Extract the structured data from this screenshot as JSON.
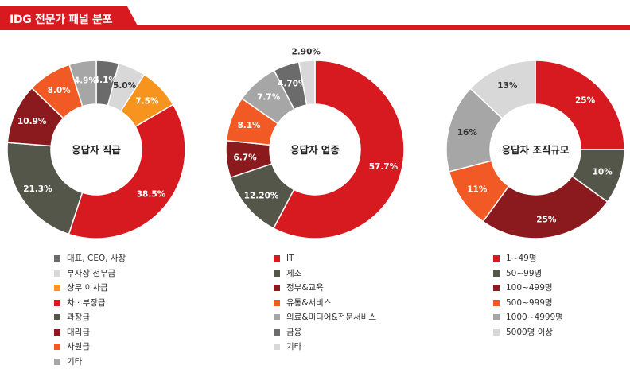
{
  "header": {
    "title": "IDG 전문가 패널 분포"
  },
  "colors": {
    "accent": "#d71920",
    "dark_gray": "#6b6b6b",
    "light_gray": "#d8d8d8",
    "orange_light": "#f7941d",
    "red": "#d71920",
    "olive_dark": "#55564a",
    "dark_red": "#8b1a1f",
    "orange": "#f15a24",
    "mid_gray": "#a6a6a6",
    "gray": "#7f7f7f"
  },
  "chart_data": [
    {
      "type": "pie",
      "title": "응답자 직급",
      "slices": [
        {
          "label": "대표, CEO, 사장",
          "value": 4.1,
          "value_label": "4.1%",
          "color": "#6b6b6b",
          "text_color": "#ffffff"
        },
        {
          "label": "부사장 전무급",
          "value": 5.0,
          "value_label": "5.0%",
          "color": "#d8d8d8",
          "text_color": "#333333"
        },
        {
          "label": "상무 이사급",
          "value": 7.5,
          "value_label": "7.5%",
          "color": "#f7941d",
          "text_color": "#ffffff"
        },
        {
          "label": "차 · 부장급",
          "value": 38.5,
          "value_label": "38.5%",
          "color": "#d71920",
          "text_color": "#ffffff"
        },
        {
          "label": "과장급",
          "value": 21.3,
          "value_label": "21.3%",
          "color": "#55564a",
          "text_color": "#ffffff"
        },
        {
          "label": "대리급",
          "value": 10.9,
          "value_label": "10.9%",
          "color": "#8b1a1f",
          "text_color": "#ffffff"
        },
        {
          "label": "사원급",
          "value": 8.0,
          "value_label": "8.0%",
          "color": "#f15a24",
          "text_color": "#ffffff"
        },
        {
          "label": "기타",
          "value": 4.9,
          "value_label": "4.9%",
          "color": "#a6a6a6",
          "text_color": "#ffffff"
        }
      ]
    },
    {
      "type": "pie",
      "title": "응답자 업종",
      "slices": [
        {
          "label": "IT",
          "value": 57.7,
          "value_label": "57.7%",
          "color": "#d71920",
          "text_color": "#ffffff"
        },
        {
          "label": "제조",
          "value": 12.2,
          "value_label": "12.20%",
          "color": "#55564a",
          "text_color": "#ffffff"
        },
        {
          "label": "정부&교육",
          "value": 6.7,
          "value_label": "6.7%",
          "color": "#8b1a1f",
          "text_color": "#ffffff"
        },
        {
          "label": "유통&서비스",
          "value": 8.1,
          "value_label": "8.1%",
          "color": "#f15a24",
          "text_color": "#ffffff"
        },
        {
          "label": "의료&미디어&전문서비스",
          "value": 7.7,
          "value_label": "7.7%",
          "color": "#a6a6a6",
          "text_color": "#ffffff"
        },
        {
          "label": "금융",
          "value": 4.7,
          "value_label": "4.70%",
          "color": "#6b6b6b",
          "text_color": "#ffffff"
        },
        {
          "label": "기타",
          "value": 2.9,
          "value_label": "2.90%",
          "color": "#d8d8d8",
          "text_color": "#333333",
          "label_outside": true
        }
      ]
    },
    {
      "type": "pie",
      "title": "응답자 조직규모",
      "slices": [
        {
          "label": "1~49명",
          "value": 25,
          "value_label": "25%",
          "color": "#d71920",
          "text_color": "#ffffff"
        },
        {
          "label": "50~99명",
          "value": 10,
          "value_label": "10%",
          "color": "#55564a",
          "text_color": "#ffffff"
        },
        {
          "label": "100~499명",
          "value": 25,
          "value_label": "25%",
          "color": "#8b1a1f",
          "text_color": "#ffffff"
        },
        {
          "label": "500~999명",
          "value": 11,
          "value_label": "11%",
          "color": "#f15a24",
          "text_color": "#ffffff"
        },
        {
          "label": "1000~4999명",
          "value": 16,
          "value_label": "16%",
          "color": "#a6a6a6",
          "text_color": "#333333"
        },
        {
          "label": "5000명 이상",
          "value": 13,
          "value_label": "13%",
          "color": "#d8d8d8",
          "text_color": "#333333"
        }
      ]
    }
  ]
}
